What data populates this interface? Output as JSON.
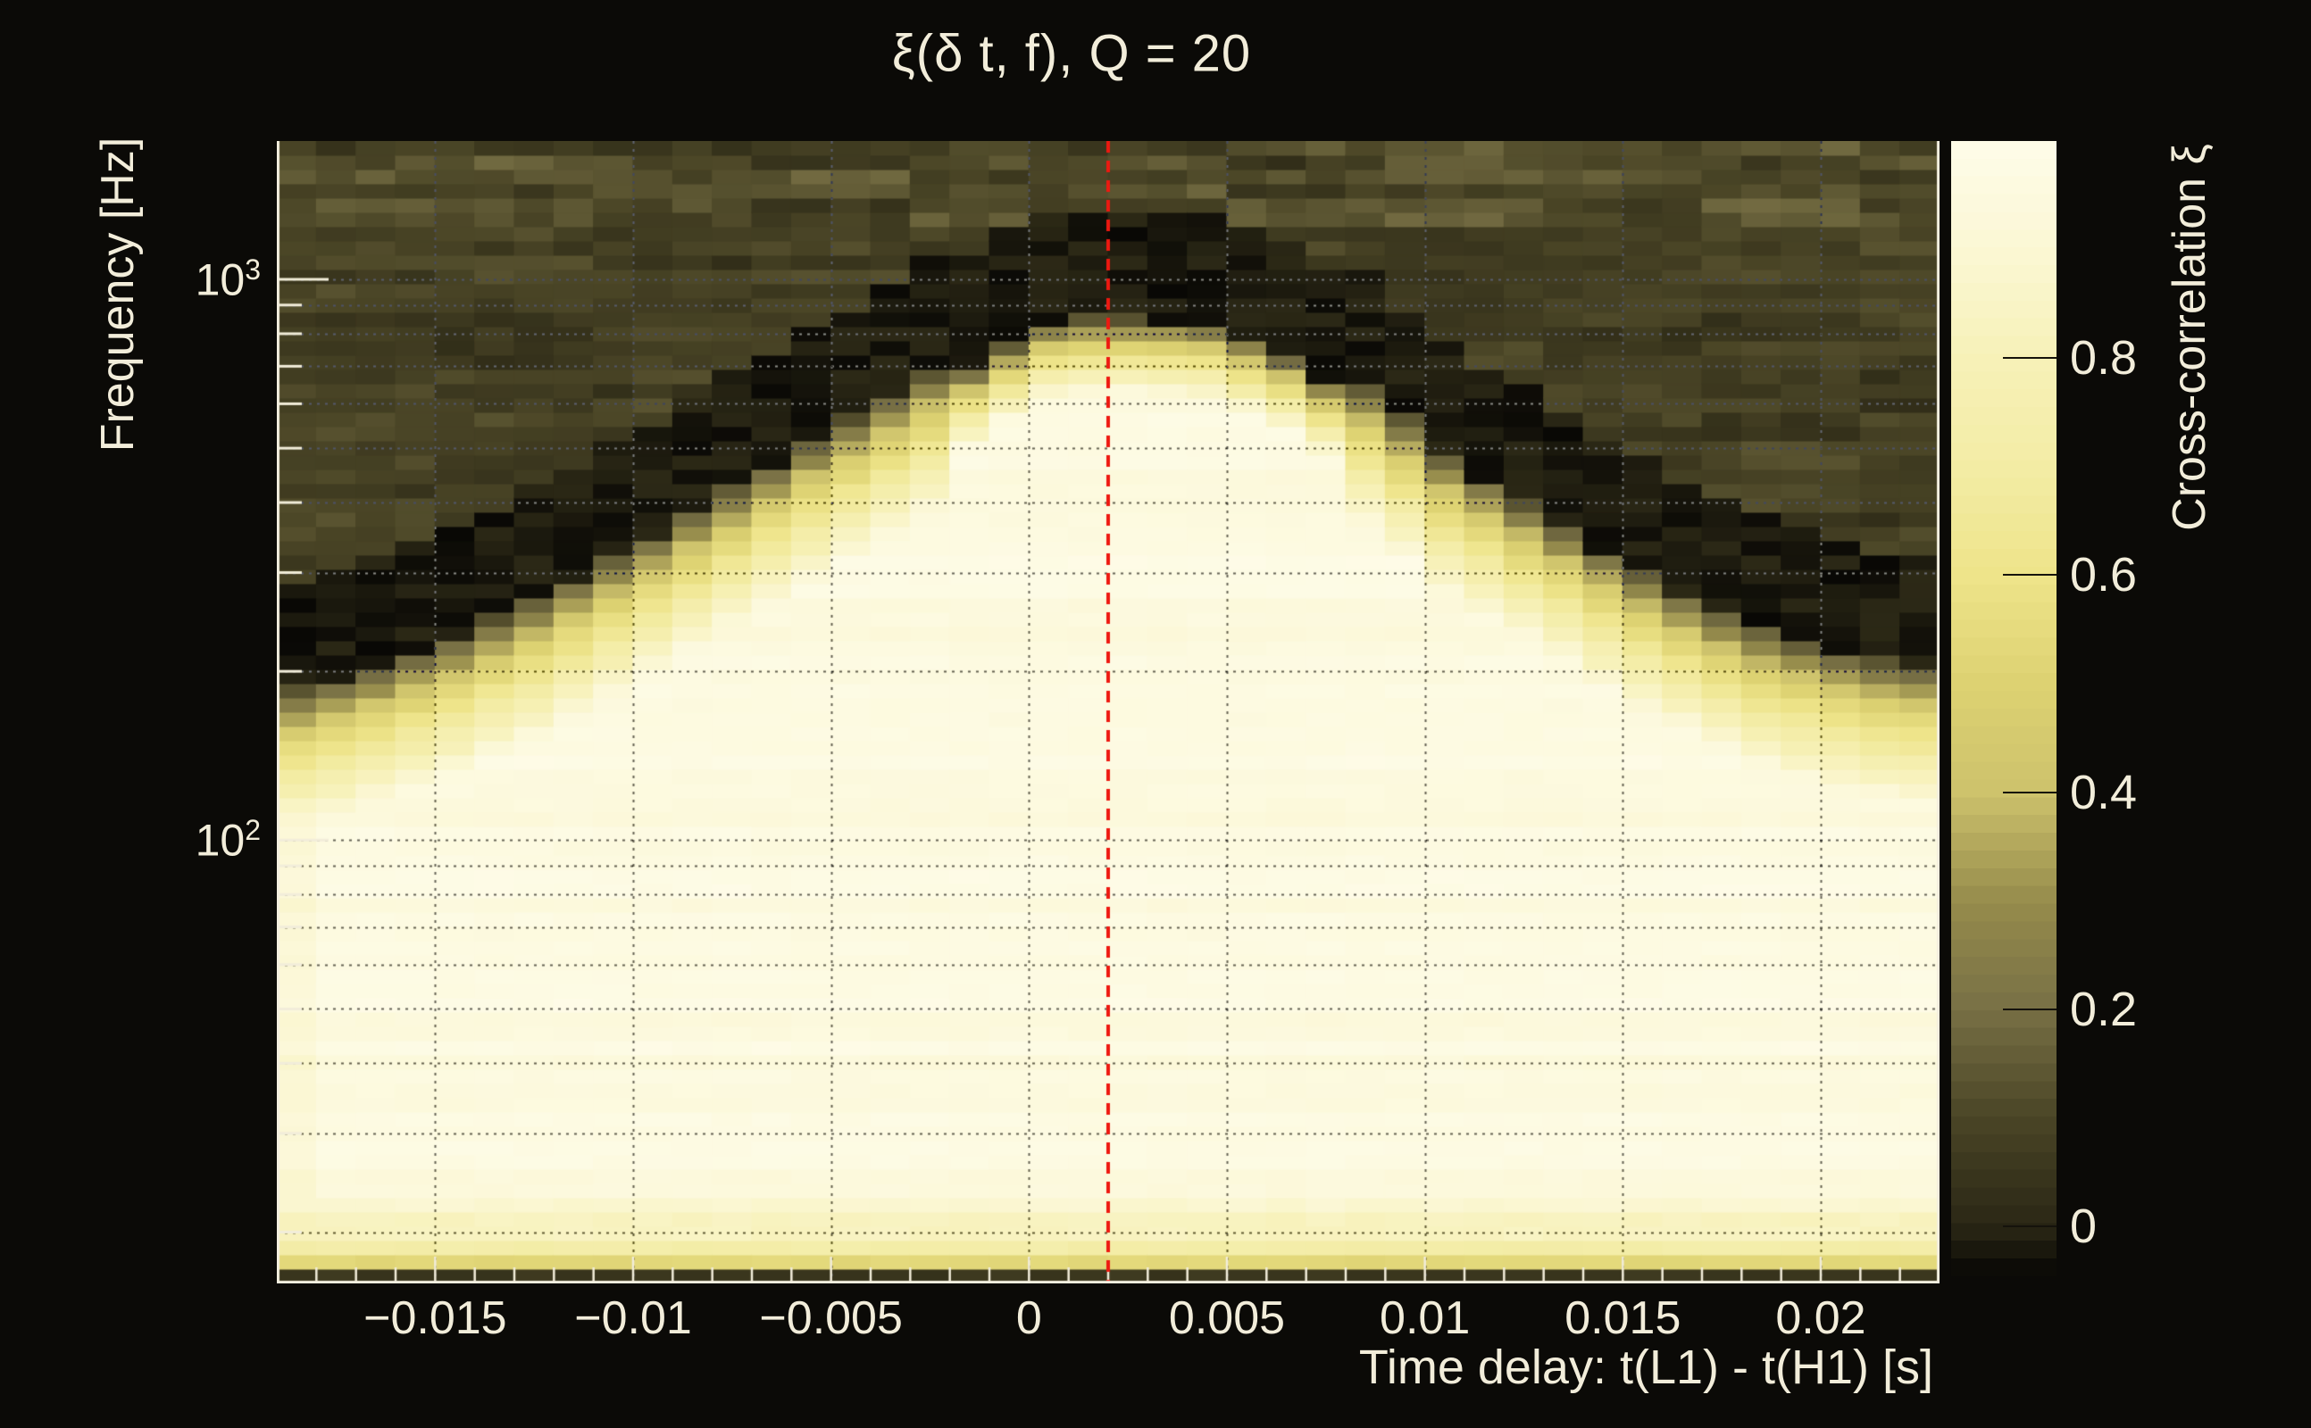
{
  "figure": {
    "background_color": "#0b0a07",
    "text_color": "#f2edda"
  },
  "chart_data": {
    "type": "heatmap",
    "title": "ξ(δ t, f), Q = 20",
    "xlabel": "Time delay: t(L1) - t(H1) [s]",
    "ylabel": "Frequency [Hz]",
    "colorbar_label": "Cross-correlation ξ",
    "q_value": 20,
    "xlim_s": [
      -0.019,
      0.023
    ],
    "ylim_hz": [
      16.2,
      1765
    ],
    "yscale": "log",
    "zlim": [
      -0.046,
      1.0
    ],
    "x_major_ticks": [
      -0.015,
      -0.01,
      -0.005,
      0,
      0.005,
      0.01,
      0.015,
      0.02
    ],
    "x_major_tick_labels": [
      "−0.015",
      "−0.01",
      "−0.005",
      "0",
      "0.005",
      "0.01",
      "0.015",
      "0.02"
    ],
    "x_minor_tick_step_s": 0.001,
    "y_major_ticks_hz": [
      100,
      1000
    ],
    "y_major_tick_labels": [
      {
        "base": "10",
        "exp": "2"
      },
      {
        "base": "10",
        "exp": "3"
      }
    ],
    "y_minor_ticks_hz": [
      20,
      30,
      40,
      50,
      60,
      70,
      80,
      90,
      200,
      300,
      400,
      500,
      600,
      700,
      800,
      900
    ],
    "colorbar_ticks": [
      0,
      0.2,
      0.4,
      0.6,
      0.8
    ],
    "colorbar_tick_labels": [
      "0",
      "0.2",
      "0.4",
      "0.6",
      "0.8"
    ],
    "marker": {
      "type": "vline",
      "time_delay_s": 0.002,
      "color": "#ee1810",
      "style": "dashed"
    },
    "grid_columns": {
      "count": 42,
      "dt_start_s": -0.019,
      "dt_step_s": 0.001
    },
    "grid_rows": {
      "count": 80,
      "f_min_hz": 16.2,
      "f_max_hz": 1765,
      "spacing": "log"
    },
    "edge_frequency_hz_per_column": [
      152,
      160,
      168,
      178,
      190,
      204,
      220,
      240,
      262,
      288,
      316,
      348,
      384,
      422,
      465,
      510,
      560,
      615,
      680,
      745,
      760,
      760,
      755,
      740,
      700,
      650,
      590,
      530,
      465,
      400,
      365,
      330,
      300,
      272,
      248,
      228,
      210,
      196,
      186,
      178,
      172,
      168
    ],
    "bright_value": 0.955,
    "edge_value": 0.5,
    "dark_band_value": -0.034,
    "noise_base": 0.02,
    "noise_amp": 0.12,
    "noise_high_freq": {
      "threshold_hz": 1250,
      "amp": 0.17
    },
    "bottom_bands": [
      {
        "f_max_hz": 16.6,
        "value": -0.03
      },
      {
        "f_max_hz": 17.4,
        "value": 0.05
      },
      {
        "f_max_hz": 18.4,
        "value": 0.53
      },
      {
        "f_max_hz": 19.7,
        "value": 0.72
      },
      {
        "f_max_hz": 21.1,
        "value": 0.83
      },
      {
        "f_max_hz": 23.0,
        "value": 0.89
      }
    ],
    "palette": [
      [
        -0.046,
        "#070604"
      ],
      [
        0.0,
        "#2a2715"
      ],
      [
        0.1,
        "#4a4526"
      ],
      [
        0.2,
        "#787045"
      ],
      [
        0.3,
        "#968c4c"
      ],
      [
        0.4,
        "#cdc26c"
      ],
      [
        0.5,
        "#ddd272"
      ],
      [
        0.6,
        "#eee48a"
      ],
      [
        0.7,
        "#f3eca5"
      ],
      [
        0.8,
        "#f7f1b8"
      ],
      [
        0.9,
        "#fbf7d4"
      ],
      [
        1.0,
        "#fefce9"
      ]
    ],
    "gridline_color": "#98988e",
    "tick_color": "#f2edda",
    "frame_color": "#f4efdf",
    "grid_on": true,
    "legend_position": "right-colorbar"
  }
}
